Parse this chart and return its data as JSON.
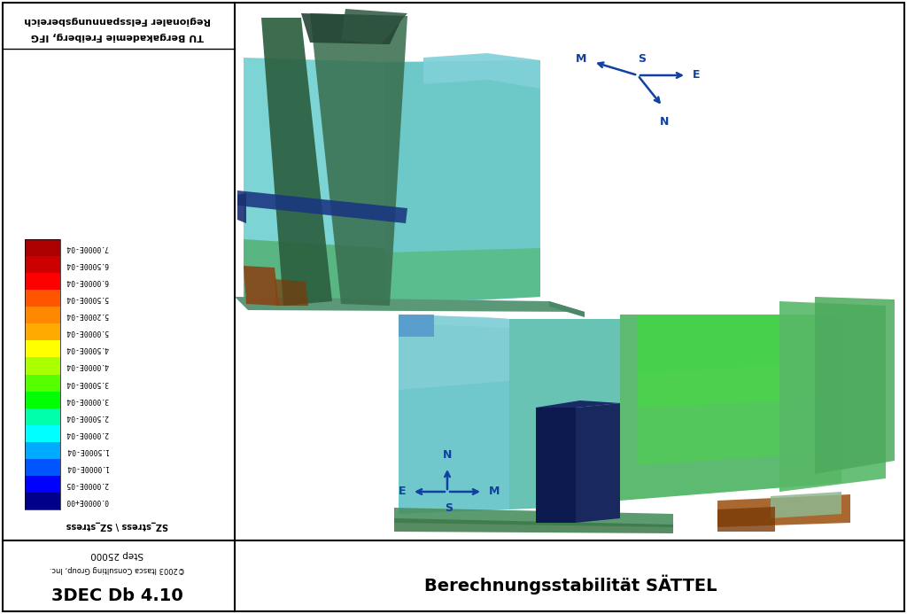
{
  "title_top_line1": "Regionaler Felsspannungsbereich",
  "title_top_line2": "TU Bergakademie Freiberg, IFG",
  "colorbar_label": "SZ_stress \\ SZ_stress",
  "colorbar_values": [
    "7.0000E-04",
    "6.5000E-04",
    "6.0000E-04",
    "5.5000E-04",
    "5.2000E-04",
    "5.0000E-04",
    "4.5000E-04",
    "4.0000E-04",
    "3.5000E-04",
    "3.0000E-04",
    "2.5000E-04",
    "2.0000E-04",
    "1.5000E-04",
    "1.0000E-04",
    "2.0000E-05",
    "0.0000E+00"
  ],
  "colorbar_colors_top_to_bottom": [
    "#AA0000",
    "#CC0000",
    "#FF0000",
    "#FF5500",
    "#FF8800",
    "#FFAA00",
    "#FFFF00",
    "#AAFF00",
    "#55FF00",
    "#00FF00",
    "#00FFAA",
    "#00FFFF",
    "#00AAFF",
    "#0055FF",
    "#0000FF",
    "#00008B"
  ],
  "step_label": "Step 25000",
  "software_label": "©2003 Itasca Consulting Group, Inc.",
  "software_name": "3DEC Db 4.10",
  "subtitle": "Berechnungsstabilität SÄTTEL",
  "bg_color": "#FFFFFF",
  "blue_text_color": "#1040A0"
}
